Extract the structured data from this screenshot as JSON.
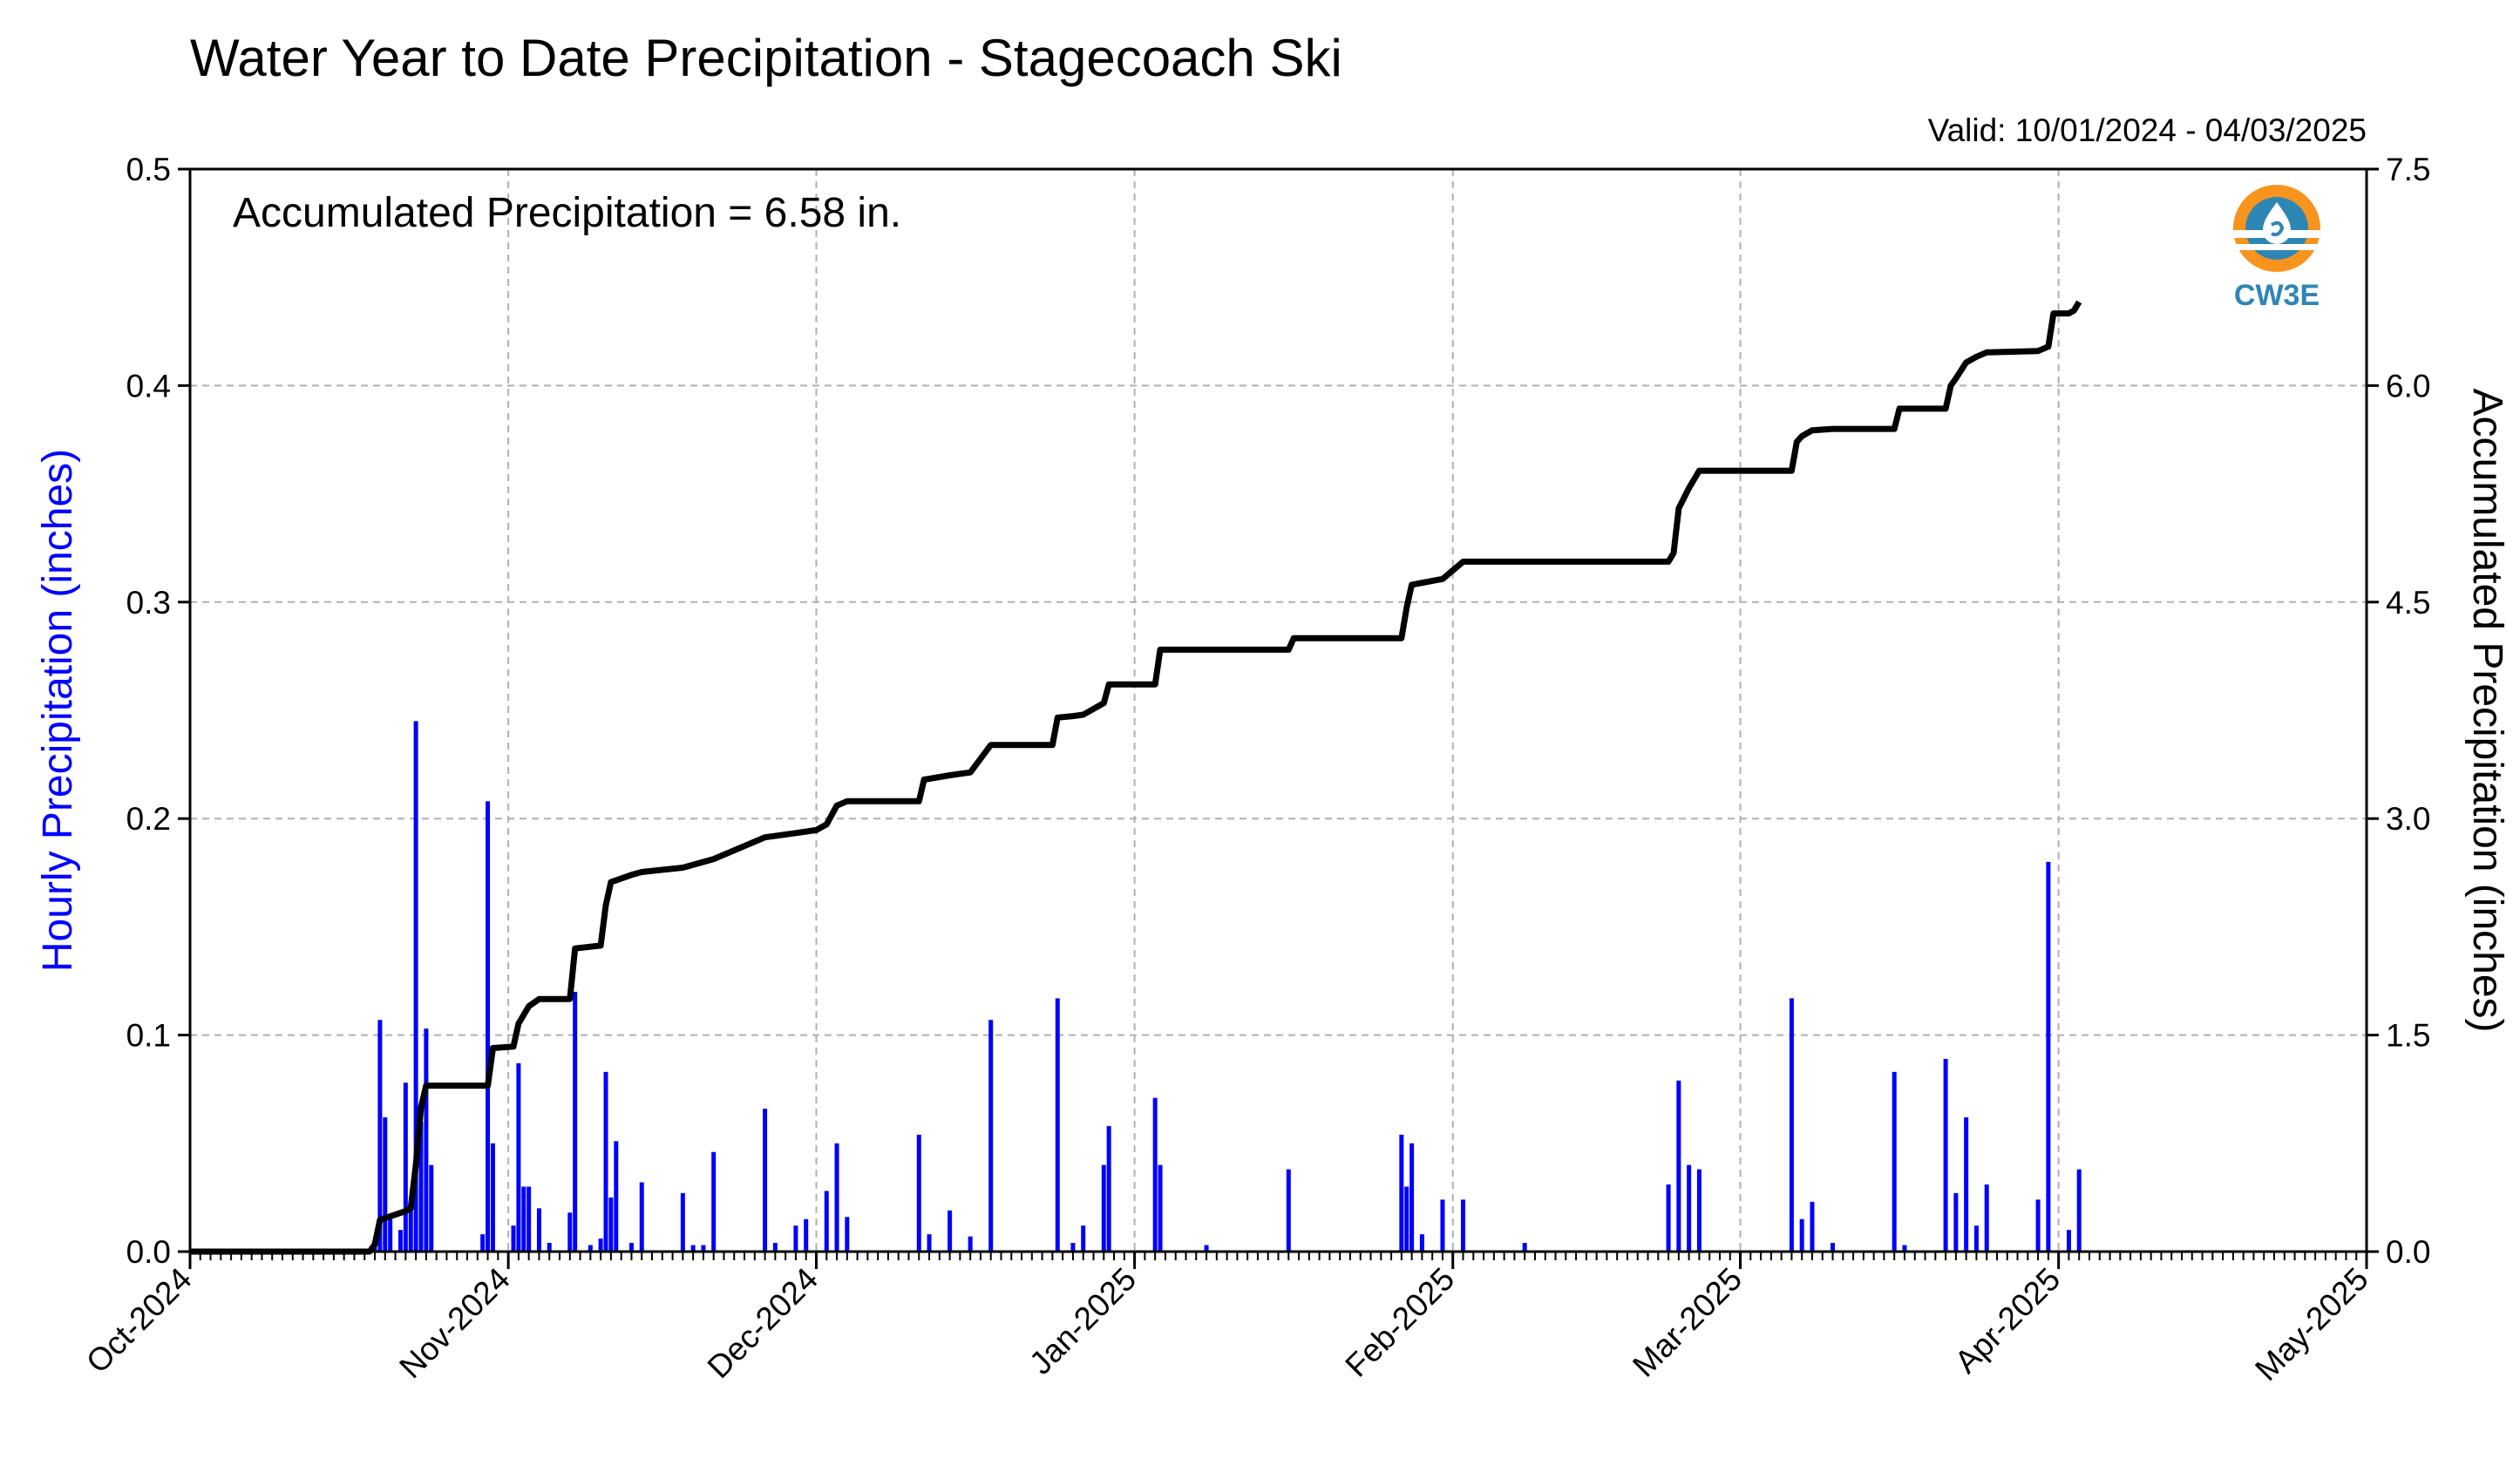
{
  "title": "Water Year to Date Precipitation - Stagecoach Ski",
  "valid_label": "Valid: 10/01/2024 - 04/03/2025",
  "annotation": "Accumulated Precipitation = 6.58 in.",
  "logo": {
    "text": "CW3E",
    "colors": {
      "orange": "#f7941d",
      "blue": "#2e86b4"
    }
  },
  "chart_data": {
    "type": "bar+line",
    "x_ticks": [
      "Oct-2024",
      "Nov-2024",
      "Dec-2024",
      "Jan-2025",
      "Feb-2025",
      "Mar-2025",
      "Apr-2025",
      "May-2025"
    ],
    "x_tick_dates": [
      "2024-10-01",
      "2024-11-01",
      "2024-12-01",
      "2025-01-01",
      "2025-02-01",
      "2025-03-01",
      "2025-04-01",
      "2025-05-01"
    ],
    "xlim": [
      "2024-10-01",
      "2025-05-01"
    ],
    "grid": true,
    "left_axis": {
      "label": "Hourly Precipitation (inches)",
      "ylim": [
        0,
        0.5
      ],
      "ticks": [
        "0.0",
        "0.1",
        "0.2",
        "0.3",
        "0.4",
        "0.5"
      ],
      "color": "#0000ff"
    },
    "right_axis": {
      "label": "Accumulated Precipitation (inches)",
      "ylim": [
        0,
        7.5
      ],
      "ticks": [
        "0.0",
        "1.5",
        "3.0",
        "4.5",
        "6.0",
        "7.5"
      ],
      "color": "#000000"
    },
    "hourly_series": {
      "color": "#0000ff",
      "points": [
        [
          "2024-10-19T00",
          0.003
        ],
        [
          "2024-10-19T12",
          0.107
        ],
        [
          "2024-10-20T00",
          0.062
        ],
        [
          "2024-10-20T12",
          0.015
        ],
        [
          "2024-10-21T12",
          0.01
        ],
        [
          "2024-10-22T00",
          0.078
        ],
        [
          "2024-10-22T12",
          0.02
        ],
        [
          "2024-10-23T00",
          0.245
        ],
        [
          "2024-10-23T12",
          0.06
        ],
        [
          "2024-10-24T00",
          0.103
        ],
        [
          "2024-10-24T12",
          0.04
        ],
        [
          "2024-10-29T12",
          0.008
        ],
        [
          "2024-10-30T00",
          0.208
        ],
        [
          "2024-10-30T12",
          0.05
        ],
        [
          "2024-11-01T12",
          0.012
        ],
        [
          "2024-11-02T00",
          0.087
        ],
        [
          "2024-11-02T12",
          0.03
        ],
        [
          "2024-11-03T00",
          0.03
        ],
        [
          "2024-11-04T00",
          0.02
        ],
        [
          "2024-11-05T00",
          0.004
        ],
        [
          "2024-11-07T00",
          0.018
        ],
        [
          "2024-11-07T12",
          0.12
        ],
        [
          "2024-11-09T00",
          0.003
        ],
        [
          "2024-11-10T00",
          0.006
        ],
        [
          "2024-11-10T12",
          0.083
        ],
        [
          "2024-11-11T00",
          0.025
        ],
        [
          "2024-11-11T12",
          0.051
        ],
        [
          "2024-11-13T00",
          0.004
        ],
        [
          "2024-11-14T00",
          0.032
        ],
        [
          "2024-11-18T00",
          0.027
        ],
        [
          "2024-11-19T00",
          0.003
        ],
        [
          "2024-11-20T00",
          0.003
        ],
        [
          "2024-11-21T00",
          0.046
        ],
        [
          "2024-11-26T00",
          0.066
        ],
        [
          "2024-11-27T00",
          0.004
        ],
        [
          "2024-11-29T00",
          0.012
        ],
        [
          "2024-11-30T00",
          0.015
        ],
        [
          "2024-12-02T00",
          0.028
        ],
        [
          "2024-12-03T00",
          0.05
        ],
        [
          "2024-12-04T00",
          0.016
        ],
        [
          "2024-12-11T00",
          0.054
        ],
        [
          "2024-12-12T00",
          0.008
        ],
        [
          "2024-12-14T00",
          0.019
        ],
        [
          "2024-12-16T00",
          0.007
        ],
        [
          "2024-12-18T00",
          0.107
        ],
        [
          "2024-12-24T12",
          0.117
        ],
        [
          "2024-12-26T00",
          0.004
        ],
        [
          "2024-12-27T00",
          0.012
        ],
        [
          "2024-12-29T00",
          0.04
        ],
        [
          "2024-12-29T12",
          0.058
        ],
        [
          "2025-01-03T00",
          0.071
        ],
        [
          "2025-01-03T12",
          0.04
        ],
        [
          "2025-01-08T00",
          0.003
        ],
        [
          "2025-01-16T00",
          0.038
        ],
        [
          "2025-01-27T00",
          0.054
        ],
        [
          "2025-01-27T12",
          0.03
        ],
        [
          "2025-01-28T00",
          0.05
        ],
        [
          "2025-01-29T00",
          0.008
        ],
        [
          "2025-01-31T00",
          0.024
        ],
        [
          "2025-02-02T00",
          0.024
        ],
        [
          "2025-02-08T00",
          0.004
        ],
        [
          "2025-02-22T00",
          0.031
        ],
        [
          "2025-02-23T00",
          0.079
        ],
        [
          "2025-02-24T00",
          0.04
        ],
        [
          "2025-02-25T00",
          0.038
        ],
        [
          "2025-03-06T00",
          0.117
        ],
        [
          "2025-03-07T00",
          0.015
        ],
        [
          "2025-03-08T00",
          0.023
        ],
        [
          "2025-03-10T00",
          0.004
        ],
        [
          "2025-03-16T00",
          0.083
        ],
        [
          "2025-03-17T00",
          0.003
        ],
        [
          "2025-03-21T00",
          0.089
        ],
        [
          "2025-03-22T00",
          0.027
        ],
        [
          "2025-03-23T00",
          0.062
        ],
        [
          "2025-03-24T00",
          0.012
        ],
        [
          "2025-03-25T00",
          0.031
        ],
        [
          "2025-03-30T00",
          0.024
        ],
        [
          "2025-03-31T00",
          0.18
        ],
        [
          "2025-04-02T00",
          0.01
        ],
        [
          "2025-04-03T00",
          0.038
        ]
      ]
    },
    "accumulated_series": {
      "color": "#000000",
      "points": [
        [
          "2024-10-01T00",
          0.0
        ],
        [
          "2024-10-18T12",
          0.0
        ],
        [
          "2024-10-19T00",
          0.05
        ],
        [
          "2024-10-19T12",
          0.22
        ],
        [
          "2024-10-22T00",
          0.28
        ],
        [
          "2024-10-22T12",
          0.3
        ],
        [
          "2024-10-23T00",
          0.6
        ],
        [
          "2024-10-23T12",
          1.0
        ],
        [
          "2024-10-24T00",
          1.15
        ],
        [
          "2024-10-30T00",
          1.15
        ],
        [
          "2024-10-30T12",
          1.41
        ],
        [
          "2024-11-01T12",
          1.42
        ],
        [
          "2024-11-02T00",
          1.58
        ],
        [
          "2024-11-03T00",
          1.7
        ],
        [
          "2024-11-04T00",
          1.75
        ],
        [
          "2024-11-07T00",
          1.75
        ],
        [
          "2024-11-07T12",
          2.1
        ],
        [
          "2024-11-10T00",
          2.12
        ],
        [
          "2024-11-10T12",
          2.4
        ],
        [
          "2024-11-11T00",
          2.56
        ],
        [
          "2024-11-13T00",
          2.61
        ],
        [
          "2024-11-14T00",
          2.63
        ],
        [
          "2024-11-18T00",
          2.66
        ],
        [
          "2024-11-21T00",
          2.72
        ],
        [
          "2024-11-26T00",
          2.87
        ],
        [
          "2024-11-29T00",
          2.9
        ],
        [
          "2024-12-01T00",
          2.92
        ],
        [
          "2024-12-02T00",
          2.96
        ],
        [
          "2024-12-03T00",
          3.09
        ],
        [
          "2024-12-04T00",
          3.12
        ],
        [
          "2024-12-11T00",
          3.12
        ],
        [
          "2024-12-11T12",
          3.27
        ],
        [
          "2024-12-14T00",
          3.3
        ],
        [
          "2024-12-16T00",
          3.32
        ],
        [
          "2024-12-18T00",
          3.51
        ],
        [
          "2024-12-24T00",
          3.51
        ],
        [
          "2024-12-24T12",
          3.7
        ],
        [
          "2024-12-26T00",
          3.71
        ],
        [
          "2024-12-27T00",
          3.72
        ],
        [
          "2024-12-29T00",
          3.8
        ],
        [
          "2024-12-29T12",
          3.93
        ],
        [
          "2025-01-03T00",
          3.93
        ],
        [
          "2025-01-03T12",
          4.17
        ],
        [
          "2025-01-16T00",
          4.17
        ],
        [
          "2025-01-16T12",
          4.25
        ],
        [
          "2025-01-27T00",
          4.25
        ],
        [
          "2025-01-27T12",
          4.46
        ],
        [
          "2025-01-28T00",
          4.62
        ],
        [
          "2025-01-31T00",
          4.66
        ],
        [
          "2025-02-02T00",
          4.78
        ],
        [
          "2025-02-22T00",
          4.78
        ],
        [
          "2025-02-22T12",
          4.84
        ],
        [
          "2025-02-23T00",
          5.15
        ],
        [
          "2025-02-24T00",
          5.29
        ],
        [
          "2025-02-25T00",
          5.41
        ],
        [
          "2025-03-06T00",
          5.41
        ],
        [
          "2025-03-06T12",
          5.61
        ],
        [
          "2025-03-07T00",
          5.65
        ],
        [
          "2025-03-08T00",
          5.69
        ],
        [
          "2025-03-10T00",
          5.7
        ],
        [
          "2025-03-16T00",
          5.7
        ],
        [
          "2025-03-16T12",
          5.84
        ],
        [
          "2025-03-21T00",
          5.84
        ],
        [
          "2025-03-21T12",
          6.0
        ],
        [
          "2025-03-22T00",
          6.05
        ],
        [
          "2025-03-23T00",
          6.16
        ],
        [
          "2025-03-24T00",
          6.2
        ],
        [
          "2025-03-25T00",
          6.23
        ],
        [
          "2025-03-30T00",
          6.24
        ],
        [
          "2025-03-31T00",
          6.27
        ],
        [
          "2025-03-31T12",
          6.5
        ],
        [
          "2025-04-02T00",
          6.5
        ],
        [
          "2025-04-02T12",
          6.52
        ],
        [
          "2025-04-03T00",
          6.58
        ]
      ]
    }
  }
}
